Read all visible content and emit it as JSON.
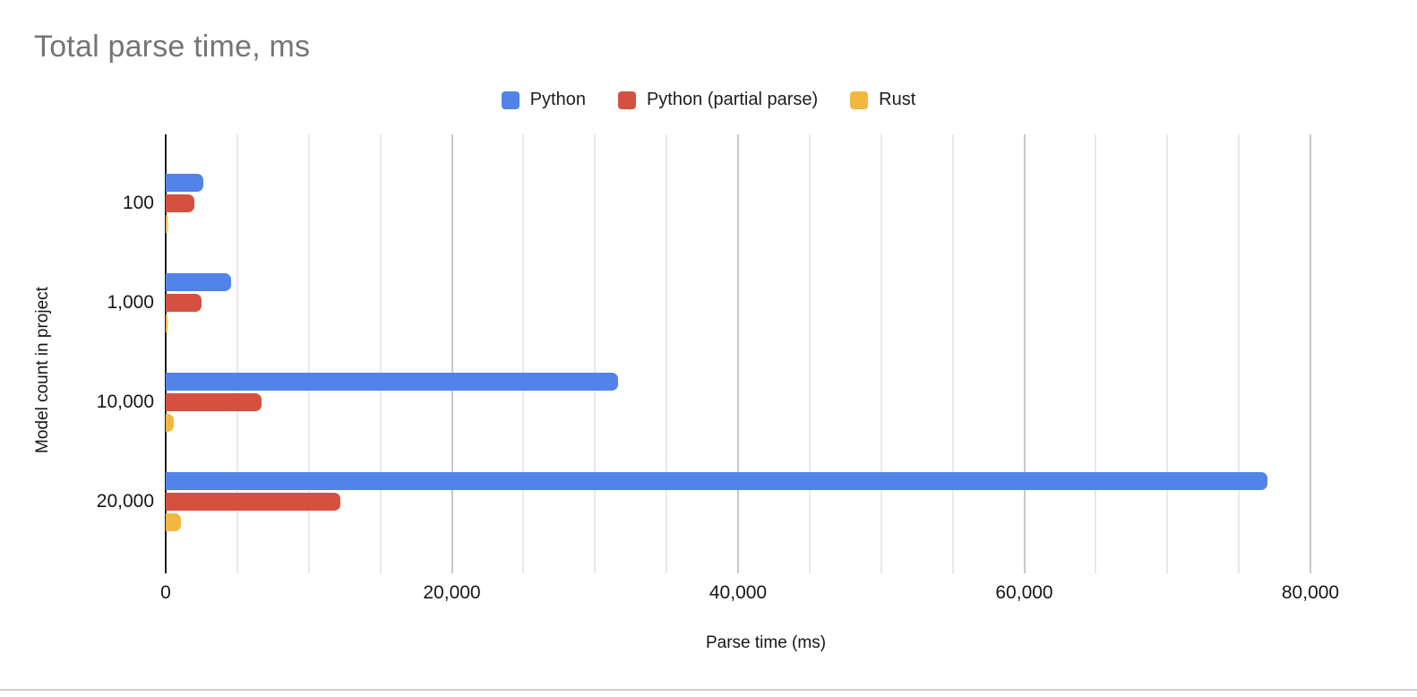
{
  "chart_data": {
    "type": "bar",
    "orientation": "horizontal",
    "title": "Total parse time, ms",
    "title_color": "#757575",
    "xlabel": "Parse time (ms)",
    "ylabel": "Model count in project",
    "categories": [
      "100",
      "1,000",
      "10,000",
      "20,000"
    ],
    "series": [
      {
        "name": "Python",
        "color": "#5183e8",
        "values": [
          2600,
          4550,
          31600,
          77000
        ]
      },
      {
        "name": "Python (partial parse)",
        "color": "#d6503f",
        "values": [
          2000,
          2500,
          6700,
          12200
        ]
      },
      {
        "name": "Rust",
        "color": "#f2b73e",
        "values": [
          50,
          100,
          580,
          1080
        ]
      }
    ],
    "xlim": [
      0,
      80000
    ],
    "x_ticks": [
      0,
      20000,
      40000,
      60000,
      80000
    ],
    "minor_gridline_step": 5000,
    "grid": true,
    "legend_position": "top"
  },
  "colors": {
    "gridline_minor": "#e9e9e9",
    "gridline_major": "#c9c9c9",
    "axis_line": "#1d1d1d",
    "divider": "#cfcfcf"
  }
}
